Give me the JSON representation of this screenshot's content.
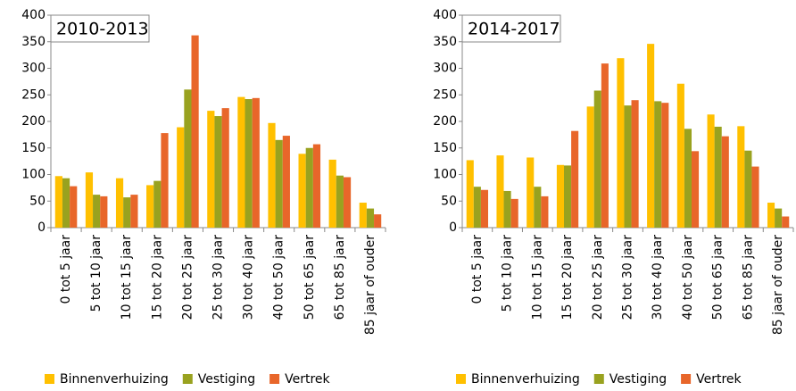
{
  "chart_data": [
    {
      "type": "bar",
      "title": "2010-2013",
      "categories": [
        "0 tot 5 jaar",
        "5 tot 10 jaar",
        "10 tot 15 jaar",
        "15 tot 20 jaar",
        "20 tot 25 jaar",
        "25 tot 30 jaar",
        "30 tot 40 jaar",
        "40 tot 50 jaar",
        "50 tot 65 jaar",
        "65 tot 85 jaar",
        "85 jaar of ouder"
      ],
      "series": [
        {
          "name": "Binnenverhuizing",
          "color": "#ffc000",
          "values": [
            97,
            104,
            93,
            80,
            189,
            220,
            246,
            197,
            139,
            128,
            47
          ]
        },
        {
          "name": "Vestiging",
          "color": "#99a21f",
          "values": [
            93,
            62,
            57,
            88,
            260,
            210,
            242,
            165,
            150,
            98,
            36
          ]
        },
        {
          "name": "Vertrek",
          "color": "#e8662a",
          "values": [
            78,
            59,
            62,
            178,
            362,
            225,
            244,
            173,
            157,
            95,
            25
          ]
        }
      ],
      "ylim": [
        0,
        400
      ],
      "yticks": [
        0,
        50,
        100,
        150,
        200,
        250,
        300,
        350,
        400
      ]
    },
    {
      "type": "bar",
      "title": "2014-2017",
      "categories": [
        "0 tot 5 jaar",
        "5 tot 10 jaar",
        "10 tot 15 jaar",
        "15 tot 20 jaar",
        "20 tot 25 jaar",
        "25 tot 30 jaar",
        "30 tot 40 jaar",
        "40 tot 50 jaar",
        "50 tot 65 jaar",
        "65 tot 85 jaar",
        "85 jaar of ouder"
      ],
      "series": [
        {
          "name": "Binnenverhuizing",
          "color": "#ffc000",
          "values": [
            127,
            136,
            132,
            118,
            228,
            319,
            346,
            271,
            213,
            191,
            47
          ]
        },
        {
          "name": "Vestiging",
          "color": "#99a21f",
          "values": [
            77,
            69,
            77,
            117,
            258,
            230,
            238,
            186,
            190,
            145,
            36
          ]
        },
        {
          "name": "Vertrek",
          "color": "#e8662a",
          "values": [
            71,
            54,
            59,
            182,
            309,
            240,
            235,
            144,
            172,
            115,
            21
          ]
        }
      ],
      "ylim": [
        0,
        400
      ],
      "yticks": [
        0,
        50,
        100,
        150,
        200,
        250,
        300,
        350,
        400
      ]
    }
  ]
}
